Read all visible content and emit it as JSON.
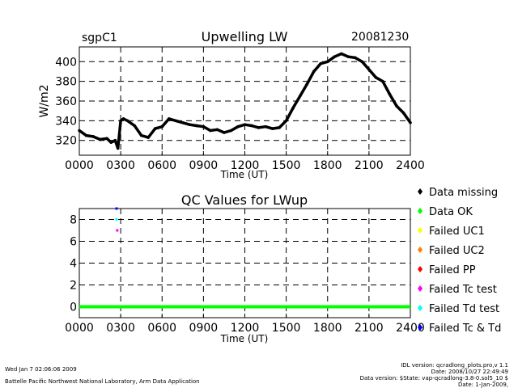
{
  "header": {
    "station": "sgpC1",
    "date": "20081230"
  },
  "chart_data": [
    {
      "type": "line",
      "title": "Upwelling LW",
      "xlabel": "Time (UT)",
      "ylabel": "W/m2",
      "xlim": [
        0,
        2400
      ],
      "ylim": [
        305,
        415
      ],
      "x_ticks": [
        "0000",
        "0300",
        "0600",
        "0900",
        "1200",
        "1500",
        "1800",
        "2100",
        "2400"
      ],
      "y_ticks": [
        320,
        340,
        360,
        380,
        400
      ],
      "grid": true,
      "series": [
        {
          "x": [
            0,
            50,
            100,
            150,
            200,
            230,
            260,
            280,
            300,
            320,
            350,
            400,
            450,
            500,
            550,
            600,
            650,
            700,
            750,
            800,
            850,
            900,
            950,
            1000,
            1050,
            1100,
            1150,
            1200,
            1250,
            1300,
            1350,
            1400,
            1450,
            1500,
            1550,
            1600,
            1650,
            1700,
            1750,
            1800,
            1850,
            1900,
            1950,
            2000,
            2050,
            2100,
            2150,
            2200,
            2250,
            2300,
            2350,
            2400
          ],
          "values": [
            330,
            325,
            324,
            321,
            322,
            318,
            320,
            312,
            340,
            342,
            340,
            335,
            325,
            323,
            332,
            334,
            342,
            340,
            338,
            336,
            335,
            334,
            330,
            331,
            328,
            330,
            334,
            336,
            335,
            333,
            334,
            332,
            333,
            340,
            353,
            365,
            377,
            390,
            398,
            400,
            405,
            408,
            405,
            404,
            400,
            392,
            384,
            380,
            367,
            355,
            348,
            338
          ]
        }
      ]
    },
    {
      "type": "scatter",
      "title": "QC Values for LWup",
      "xlabel": "Time (UT)",
      "xlim": [
        0,
        2400
      ],
      "ylim": [
        -1,
        9
      ],
      "x_ticks": [
        "0000",
        "0300",
        "0600",
        "0900",
        "1200",
        "1500",
        "1800",
        "2100",
        "2400"
      ],
      "y_ticks": [
        0,
        2,
        4,
        6,
        8
      ],
      "grid": true,
      "legend": [
        "Data missing",
        "Data OK",
        "Failed UC1",
        "Failed UC2",
        "Failed PP",
        "Failed Tc test",
        "Failed Td test",
        "Failed Tc & Td"
      ],
      "legend_colors": [
        "#000000",
        "#00ff00",
        "#ffff00",
        "#ff8000",
        "#ff0000",
        "#ff00ff",
        "#00ffff",
        "#0000ff"
      ],
      "series": [
        {
          "name": "Data OK",
          "x": [
            0,
            2400
          ],
          "values": [
            0,
            0
          ]
        },
        {
          "name": "Failed Tc test",
          "x": [
            275
          ],
          "values": [
            7
          ]
        },
        {
          "name": "Failed Td test",
          "x": [
            270
          ],
          "values": [
            8
          ]
        },
        {
          "name": "Failed Tc & Td",
          "x": [
            270
          ],
          "values": [
            9
          ]
        }
      ]
    }
  ],
  "footer": {
    "left_date": "Wed Jan  7 02:06:06 2009",
    "left_org": "Battelle Pacific Northwest National Laboratory, Arm Data Application",
    "right_lines": [
      "IDL version: qcradlong_plots.pro,v 1.1",
      "Date: 2008/10/27 22:49:49",
      "Data version: $State: vap-qcradlong-3.8-0.sol5_10 $",
      "Date: 1-Jan-2009,"
    ]
  }
}
